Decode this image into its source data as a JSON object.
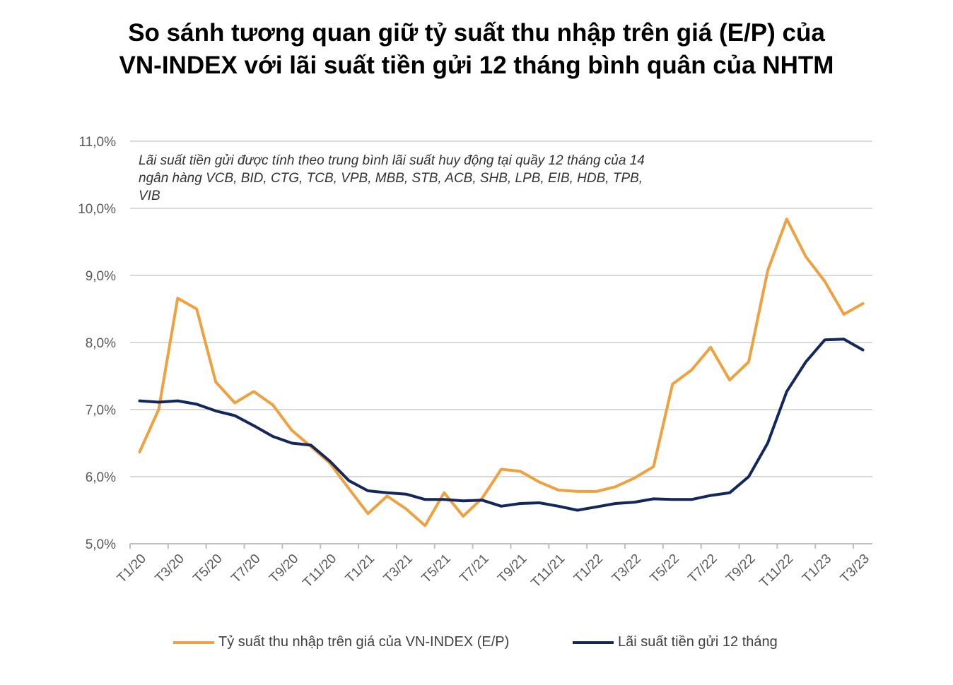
{
  "title": {
    "line1": "So sánh tương quan giữ tỷ suất thu nhập trên giá (E/P) của",
    "line2": "VN-INDEX với lãi suất tiền gửi 12 tháng bình quân của NHTM"
  },
  "note": "Lãi suất tiền gửi được tính theo trung bình lãi suất huy động tại quầy 12 tháng của 14 ngân hàng VCB, BID, CTG, TCB, VPB, MBB, STB, ACB, SHB, LPB, EIB, HDB, TPB, VIB",
  "colors": {
    "ep": "#f0a13f",
    "deposit": "#14275c",
    "grid": "#d9d9d9",
    "axis": "#bfbfbf",
    "tick_text": "#595959"
  },
  "chart_data": {
    "type": "line",
    "categories": [
      "T1/20",
      "T2/20",
      "T3/20",
      "T4/20",
      "T5/20",
      "T6/20",
      "T7/20",
      "T8/20",
      "T9/20",
      "T10/20",
      "T11/20",
      "T12/20",
      "T1/21",
      "T2/21",
      "T3/21",
      "T4/21",
      "T5/21",
      "T6/21",
      "T7/21",
      "T8/21",
      "T9/21",
      "T10/21",
      "T11/21",
      "T12/21",
      "T1/22",
      "T2/22",
      "T3/22",
      "T4/22",
      "T5/22",
      "T6/22",
      "T7/22",
      "T8/22",
      "T9/22",
      "T10/22",
      "T11/22",
      "T12/22",
      "T1/23",
      "T2/23",
      "T3/23"
    ],
    "tick_labels": [
      "T1/20",
      "T3/20",
      "T5/20",
      "T7/20",
      "T9/20",
      "T11/20",
      "T1/21",
      "T3/21",
      "T5/21",
      "T7/21",
      "T9/21",
      "T11/21",
      "T1/22",
      "T3/22",
      "T5/22",
      "T7/22",
      "T9/22",
      "T11/22",
      "T1/23",
      "T3/23"
    ],
    "series": [
      {
        "name": "Tỷ suất thu nhập trên giá của VN-INDEX (E/P)",
        "color": "#f0a13f",
        "values": [
          6.37,
          7.0,
          8.66,
          8.5,
          7.41,
          7.1,
          7.27,
          7.07,
          6.69,
          6.45,
          6.2,
          5.82,
          5.45,
          5.71,
          5.52,
          5.27,
          5.76,
          5.41,
          5.68,
          6.11,
          6.08,
          5.92,
          5.8,
          5.78,
          5.78,
          5.85,
          5.98,
          6.15,
          7.38,
          7.59,
          7.93,
          7.44,
          7.71,
          9.07,
          9.84,
          9.28,
          8.91,
          8.42,
          8.58
        ]
      },
      {
        "name": "Lãi suất tiền gửi 12 tháng",
        "color": "#14275c",
        "values": [
          7.13,
          7.11,
          7.13,
          7.08,
          6.98,
          6.91,
          6.76,
          6.6,
          6.5,
          6.47,
          6.23,
          5.94,
          5.79,
          5.76,
          5.74,
          5.66,
          5.66,
          5.64,
          5.65,
          5.56,
          5.6,
          5.61,
          5.56,
          5.5,
          5.55,
          5.6,
          5.62,
          5.67,
          5.66,
          5.66,
          5.72,
          5.76,
          6.0,
          6.5,
          7.27,
          7.71,
          8.04,
          8.05,
          7.89
        ]
      }
    ],
    "y_ticks": [
      "5,0%",
      "6,0%",
      "7,0%",
      "8,0%",
      "9,0%",
      "10,0%",
      "11,0%"
    ],
    "ylim": [
      5.0,
      11.0
    ],
    "grid": true,
    "legend_position": "bottom"
  }
}
